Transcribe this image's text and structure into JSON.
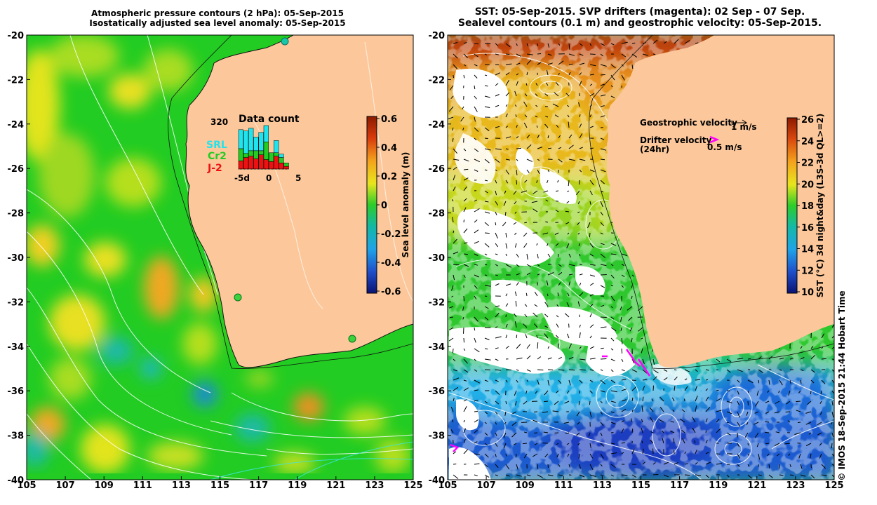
{
  "left_map": {
    "title_line1": "Atmospheric pressure contours (2 hPa): 05-Sep-2015",
    "title_line2": "Isostatically adjusted sea level anomaly: 05-Sep-2015",
    "x_ticks": [
      "105",
      "107",
      "109",
      "111",
      "113",
      "115",
      "117",
      "119",
      "121",
      "123",
      "125"
    ],
    "y_ticks": [
      "-20",
      "-22",
      "-24",
      "-26",
      "-28",
      "-30",
      "-32",
      "-34",
      "-36",
      "-38",
      "-40"
    ],
    "colorbar_label": "Sea level anomaly (m)",
    "colorbar_ticks": [
      "0.6",
      "0.4",
      "0.2",
      "0",
      "-0.2",
      "-0.4",
      "-0.6"
    ],
    "inset": {
      "title": "Data count",
      "max_label": "320",
      "x_ticks": [
        "-5d",
        "0",
        "5"
      ],
      "legend": [
        {
          "name": "SRL",
          "color": "#1fe4ee"
        },
        {
          "name": "Cr2",
          "color": "#22cc22"
        },
        {
          "name": "J-2",
          "color": "#ee1111"
        }
      ]
    }
  },
  "right_map": {
    "title_line1": "SST: 05-Sep-2015. SVP drifters (magenta): 02 Sep - 07 Sep.",
    "title_line2": "Sealevel contours (0.1 m) and geostrophic velocity: 05-Sep-2015.",
    "x_ticks": [
      "105",
      "107",
      "109",
      "111",
      "113",
      "115",
      "117",
      "119",
      "121",
      "123",
      "125"
    ],
    "y_ticks": [
      "-20",
      "-22",
      "-24",
      "-26",
      "-28",
      "-30",
      "-32",
      "-34",
      "-36",
      "-38",
      "-40"
    ],
    "colorbar_label": "SST (°C) 3d night&day (L3S-3d QL>=2)",
    "colorbar_ticks": [
      "26",
      "24",
      "22",
      "20",
      "18",
      "16",
      "14",
      "12",
      "10"
    ],
    "legend": {
      "geo_label": "Geostrophic velocity",
      "geo_scale": "1 m/s",
      "drifter_label": "Drifter velocity",
      "drifter_period": "(24hr)",
      "drifter_scale": "0.5 m/s"
    }
  },
  "credit": "© IMOS 18-Sep-2015 21:44 Hobart Time",
  "colors": {
    "land": "#fcc89b",
    "drifter": "#ff00ff",
    "ocean_base_left": "#22cc22"
  },
  "chart_data": [
    {
      "type": "heatmap",
      "title": "Atmospheric pressure contours (2 hPa): 05-Sep-2015 / Isostatically adjusted sea level anomaly: 05-Sep-2015",
      "xlim": [
        105,
        125
      ],
      "ylim": [
        -40,
        -20
      ],
      "colorbar_range": [
        -0.6,
        0.6
      ],
      "colorbar_label": "Sea level anomaly (m)"
    },
    {
      "type": "bar",
      "title": "Data count",
      "categories": [
        "-5",
        "-4",
        "-3",
        "-2",
        "-1",
        "0",
        "1",
        "2",
        "3",
        "4"
      ],
      "series": [
        {
          "name": "J-2",
          "values": [
            60,
            85,
            95,
            75,
            105,
            70,
            55,
            95,
            45,
            20
          ]
        },
        {
          "name": "Cr2",
          "values": [
            90,
            30,
            40,
            60,
            30,
            130,
            65,
            25,
            40,
            25
          ]
        },
        {
          "name": "SRL",
          "values": [
            140,
            165,
            165,
            100,
            135,
            120,
            0,
            90,
            25,
            0
          ]
        }
      ],
      "ylim": [
        0,
        320
      ],
      "xlabel": "",
      "ylabel": ""
    },
    {
      "type": "heatmap",
      "title": "SST: 05-Sep-2015. SVP drifters (magenta): 02 Sep - 07 Sep. / Sealevel contours (0.1 m) and geostrophic velocity: 05-Sep-2015.",
      "xlim": [
        105,
        125
      ],
      "ylim": [
        -40,
        -20
      ],
      "colorbar_range": [
        10,
        26
      ],
      "colorbar_label": "SST (°C) 3d night&day (L3S-3d QL>=2)"
    }
  ]
}
